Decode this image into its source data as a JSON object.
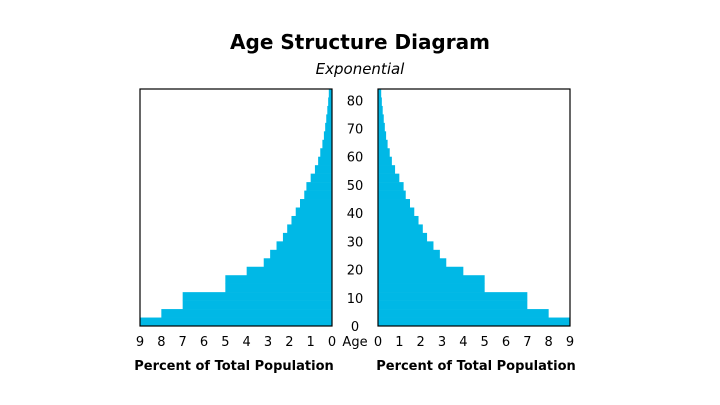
{
  "chart_data": {
    "type": "bar",
    "orientation": "horizontal-pyramid",
    "title": "Age Structure Diagram",
    "subtitle": "Exponential",
    "age_axis_label": "Age",
    "age_ticks": [
      0,
      10,
      20,
      30,
      40,
      50,
      60,
      70,
      80
    ],
    "age_range": [
      0,
      84
    ],
    "percent_ticks": [
      0,
      1,
      2,
      3,
      4,
      5,
      6,
      7,
      8,
      9
    ],
    "percent_range": [
      0,
      9
    ],
    "left_xlabel": "Percent of Total Population",
    "right_xlabel": "Percent of Total Population",
    "bar_color": "#00b8e6",
    "grid": false,
    "age_bin_width": 3,
    "age_bin_starts": [
      0,
      3,
      6,
      9,
      12,
      15,
      18,
      21,
      24,
      27,
      30,
      33,
      36,
      39,
      42,
      45,
      48,
      51,
      54,
      57,
      60,
      63,
      66,
      69,
      72,
      75,
      78,
      81
    ],
    "series": [
      {
        "side": "left",
        "values": [
          9.0,
          8.0,
          7.0,
          7.0,
          5.0,
          5.0,
          4.0,
          3.2,
          2.9,
          2.6,
          2.3,
          2.1,
          1.9,
          1.7,
          1.5,
          1.3,
          1.2,
          1.0,
          0.8,
          0.65,
          0.55,
          0.45,
          0.38,
          0.32,
          0.27,
          0.22,
          0.18,
          0.15
        ]
      },
      {
        "side": "right",
        "values": [
          9.0,
          8.0,
          7.0,
          7.0,
          5.0,
          5.0,
          4.0,
          3.2,
          2.9,
          2.6,
          2.3,
          2.1,
          1.9,
          1.7,
          1.5,
          1.3,
          1.2,
          1.0,
          0.8,
          0.65,
          0.55,
          0.45,
          0.38,
          0.32,
          0.27,
          0.22,
          0.18,
          0.15
        ]
      }
    ]
  }
}
